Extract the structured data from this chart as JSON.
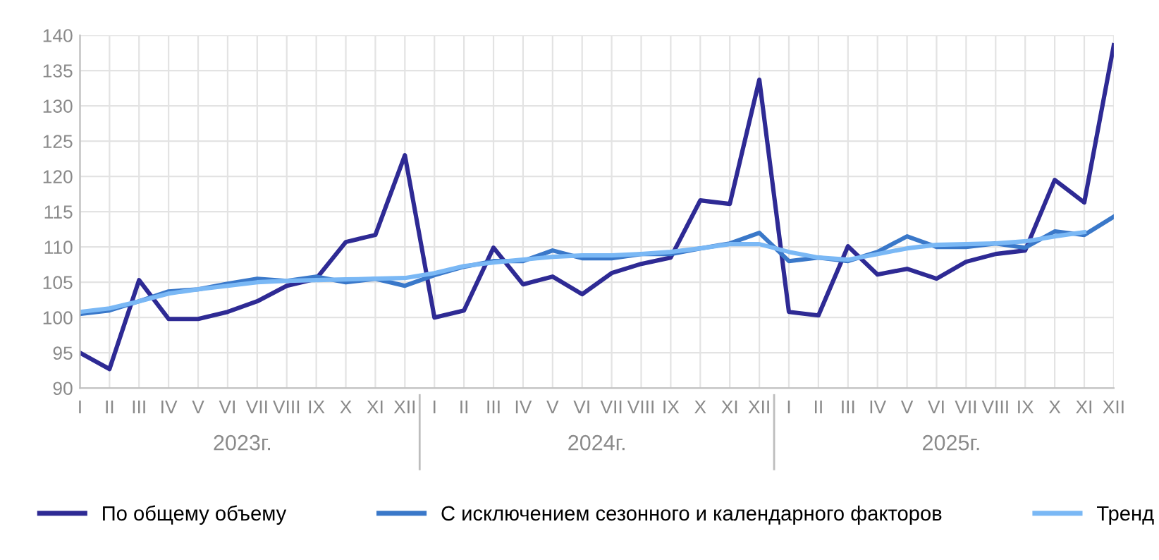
{
  "chart_data": {
    "type": "line",
    "categories": [
      "I",
      "II",
      "III",
      "IV",
      "V",
      "VI",
      "VII",
      "VIII",
      "IX",
      "X",
      "XI",
      "XII",
      "I",
      "II",
      "III",
      "IV",
      "V",
      "VI",
      "VII",
      "VIII",
      "IX",
      "X",
      "XI",
      "XII",
      "I",
      "II",
      "III",
      "IV",
      "V",
      "VI",
      "VII",
      "VIII",
      "IX",
      "X",
      "XI",
      "XII"
    ],
    "series": [
      {
        "name": "По общему объему",
        "color": "#2e2a94",
        "values": [
          95,
          92.7,
          105.3,
          99.8,
          99.8,
          100.8,
          102.3,
          104.5,
          105.5,
          110.7,
          111.7,
          123,
          100,
          101,
          109.9,
          104.7,
          105.8,
          103.3,
          106.3,
          107.6,
          108.5,
          116.6,
          116.1,
          133.7,
          100.8,
          100.3,
          110.1,
          106.1,
          106.9,
          105.5,
          107.9,
          109,
          109.5,
          119.5,
          116.3,
          138.6
        ]
      },
      {
        "name": "С исключением сезонного и календарного факторов",
        "color": "#3a78c9",
        "values": [
          100.5,
          101,
          102.3,
          103.7,
          104,
          104.8,
          105.5,
          105.2,
          105.8,
          105,
          105.5,
          104.5,
          106,
          107.2,
          108,
          108,
          109.5,
          108.4,
          108.4,
          109,
          109,
          109.8,
          110.5,
          112,
          108,
          108.5,
          108,
          109.3,
          111.5,
          110,
          110,
          110.5,
          109.9,
          112.2,
          111.7,
          114.3
        ]
      },
      {
        "name": "Тренд",
        "color": "#7ab8f5",
        "values": [
          100.8,
          101.3,
          102.3,
          103.4,
          104,
          104.5,
          105,
          105.2,
          105.3,
          105.4,
          105.5,
          105.6,
          106.3,
          107.3,
          107.8,
          108.2,
          108.6,
          108.8,
          108.8,
          109,
          109.3,
          109.8,
          110.4,
          110.4,
          109.3,
          108.5,
          108.2,
          109,
          109.8,
          110.3,
          110.4,
          110.5,
          110.8,
          111.5,
          112.1,
          null
        ]
      }
    ],
    "ylim": [
      90,
      140
    ],
    "yticks": [
      90,
      95,
      100,
      105,
      110,
      115,
      120,
      125,
      130,
      135,
      140
    ],
    "annotations": [
      "2023г.",
      "2024г.",
      "2025г."
    ],
    "grid": true,
    "legend": "bottom",
    "marker": "none",
    "line_style": "solid"
  }
}
